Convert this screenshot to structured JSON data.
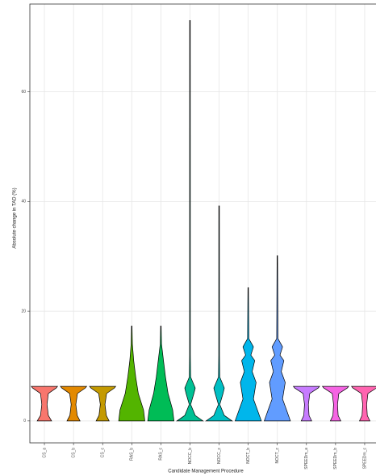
{
  "chart_data": {
    "type": "violin",
    "x_label": "Candidate Management Procedure",
    "y_label": "Absolute change in TAD (%)",
    "categories": [
      "CS_a",
      "CS_b",
      "CS_c",
      "RAS_b",
      "RAS_c",
      "NOCC_b",
      "NOCC_c",
      "NOCT_b",
      "NOCT_c",
      "SPEEDm_a",
      "SPEEDm_b",
      "SPEEDm_c"
    ],
    "ylim": [
      -4,
      76
    ],
    "yticks": [
      0,
      20,
      40,
      60
    ],
    "grid": true,
    "violins": [
      {
        "color": "#F8766D",
        "y": [
          0,
          1,
          3,
          5,
          6,
          6.3
        ],
        "width": [
          0.55,
          0.3,
          0.2,
          0.3,
          0.9,
          1
        ]
      },
      {
        "color": "#E38900",
        "y": [
          0,
          1,
          3,
          5,
          6,
          6.3
        ],
        "width": [
          0.5,
          0.28,
          0.18,
          0.3,
          0.9,
          1
        ]
      },
      {
        "color": "#C49A00",
        "y": [
          0,
          1,
          3,
          5,
          6,
          6.3
        ],
        "width": [
          0.5,
          0.28,
          0.18,
          0.3,
          0.9,
          1
        ]
      },
      {
        "color": "#53B400",
        "y": [
          0,
          2,
          5,
          8,
          11,
          14,
          17.3
        ],
        "width": [
          1,
          0.9,
          0.5,
          0.3,
          0.15,
          0.05,
          0.02
        ]
      },
      {
        "color": "#00BC56",
        "y": [
          0,
          2,
          5,
          8,
          11,
          14,
          17.3
        ],
        "width": [
          1,
          0.9,
          0.55,
          0.35,
          0.2,
          0.05,
          0.02
        ]
      },
      {
        "color": "#00C094",
        "y": [
          0,
          1,
          3,
          5,
          6,
          8,
          12,
          73
        ],
        "width": [
          1,
          0.4,
          0.05,
          0.3,
          0.4,
          0.05,
          0.03,
          0.02
        ]
      },
      {
        "color": "#00BFC4",
        "y": [
          0,
          1,
          3,
          5,
          6,
          8,
          12,
          39.2
        ],
        "width": [
          1,
          0.4,
          0.05,
          0.3,
          0.4,
          0.05,
          0.03,
          0.02
        ]
      },
      {
        "color": "#00B6EB",
        "y": [
          0,
          2,
          4,
          7,
          9,
          11,
          12,
          13.5,
          15,
          24.3
        ],
        "width": [
          1,
          0.7,
          0.4,
          0.6,
          0.3,
          0.5,
          0.2,
          0.4,
          0.05,
          0.02
        ]
      },
      {
        "color": "#619CFF",
        "y": [
          0,
          2,
          4,
          7,
          9,
          11,
          12,
          13.5,
          15,
          30.1
        ],
        "width": [
          1,
          0.7,
          0.4,
          0.6,
          0.3,
          0.5,
          0.2,
          0.4,
          0.05,
          0.02
        ]
      },
      {
        "color": "#C77CFF",
        "y": [
          0,
          1,
          3,
          5,
          6,
          6.3
        ],
        "width": [
          0.4,
          0.2,
          0.15,
          0.25,
          0.9,
          1
        ]
      },
      {
        "color": "#F564E3",
        "y": [
          0,
          1,
          3,
          5,
          6,
          6.3
        ],
        "width": [
          0.4,
          0.2,
          0.15,
          0.25,
          0.9,
          1
        ]
      },
      {
        "color": "#FF64B0",
        "y": [
          0,
          1,
          3,
          5,
          6,
          6.3
        ],
        "width": [
          0.4,
          0.2,
          0.15,
          0.25,
          0.9,
          1
        ]
      }
    ]
  }
}
